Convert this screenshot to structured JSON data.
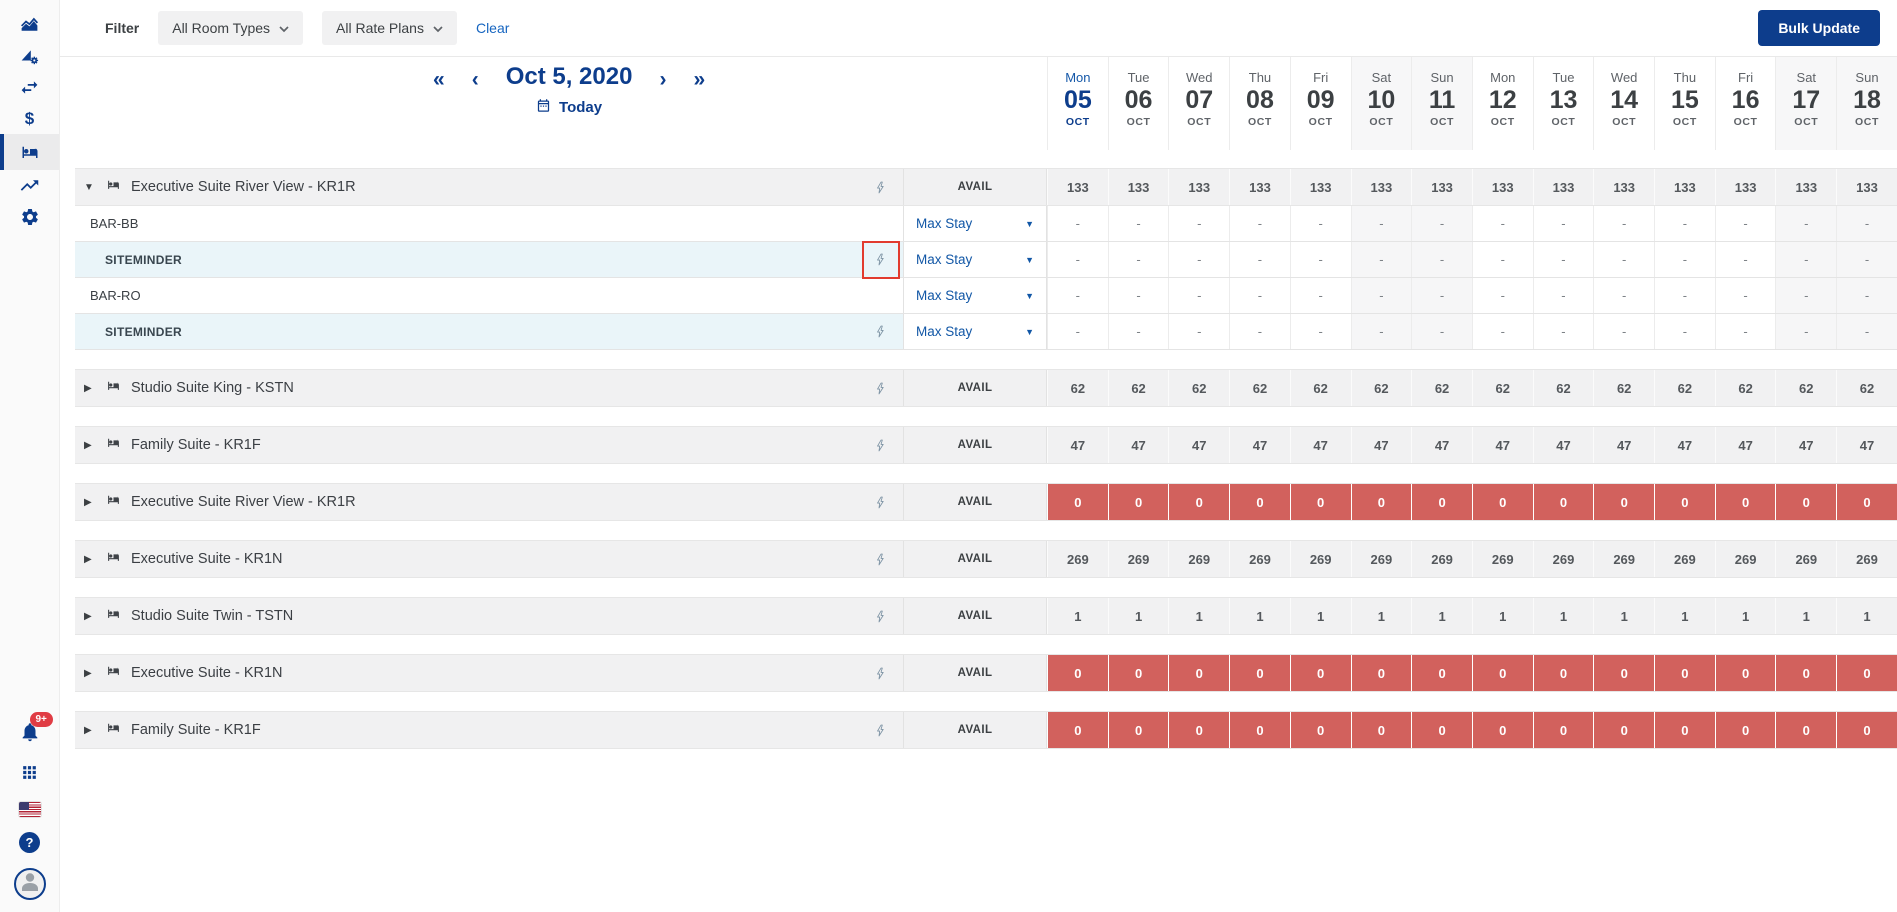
{
  "colors": {
    "navy": "#0d3d8c",
    "link_blue": "#1665c0",
    "dropdown_blue": "#1257a6",
    "zero_cell_red": "#d2615d",
    "highlight_red": "#e23b2e",
    "group_row_gray": "#f1f1f2",
    "channel_row_blue": "#eaf5f9",
    "badge_red": "#e03c44"
  },
  "sidebar": {
    "top_icons": [
      {
        "name": "dashboard-chart-icon",
        "selected": false
      },
      {
        "name": "rates-settings-icon",
        "selected": false
      },
      {
        "name": "swap-horizontal-icon",
        "selected": false
      },
      {
        "name": "currency-icon",
        "selected": false,
        "glyph": "$"
      },
      {
        "name": "rooms-bed-icon",
        "selected": true
      },
      {
        "name": "trending-up-icon",
        "selected": false
      },
      {
        "name": "settings-gear-icon",
        "selected": false
      }
    ],
    "notification_badge": "9+"
  },
  "filter_bar": {
    "label": "Filter",
    "room_types": "All Room Types",
    "rate_plans": "All Rate Plans",
    "clear": "Clear",
    "bulk_update": "Bulk Update"
  },
  "date_nav": {
    "prev_fast": "«",
    "prev": "‹",
    "title": "Oct 5, 2020",
    "next": "›",
    "next_fast": "»",
    "today": "Today"
  },
  "calendar": {
    "days": [
      {
        "dow": "Mon",
        "day": "05",
        "month": "OCT",
        "today": true,
        "weekend": false
      },
      {
        "dow": "Tue",
        "day": "06",
        "month": "OCT",
        "today": false,
        "weekend": false
      },
      {
        "dow": "Wed",
        "day": "07",
        "month": "OCT",
        "today": false,
        "weekend": false
      },
      {
        "dow": "Thu",
        "day": "08",
        "month": "OCT",
        "today": false,
        "weekend": false
      },
      {
        "dow": "Fri",
        "day": "09",
        "month": "OCT",
        "today": false,
        "weekend": false
      },
      {
        "dow": "Sat",
        "day": "10",
        "month": "OCT",
        "today": false,
        "weekend": true
      },
      {
        "dow": "Sun",
        "day": "11",
        "month": "OCT",
        "today": false,
        "weekend": true
      },
      {
        "dow": "Mon",
        "day": "12",
        "month": "OCT",
        "today": false,
        "weekend": false
      },
      {
        "dow": "Tue",
        "day": "13",
        "month": "OCT",
        "today": false,
        "weekend": false
      },
      {
        "dow": "Wed",
        "day": "14",
        "month": "OCT",
        "today": false,
        "weekend": false
      },
      {
        "dow": "Thu",
        "day": "15",
        "month": "OCT",
        "today": false,
        "weekend": false
      },
      {
        "dow": "Fri",
        "day": "16",
        "month": "OCT",
        "today": false,
        "weekend": false
      },
      {
        "dow": "Sat",
        "day": "17",
        "month": "OCT",
        "today": false,
        "weekend": true
      },
      {
        "dow": "Sun",
        "day": "18",
        "month": "OCT",
        "today": false,
        "weekend": true
      }
    ]
  },
  "table": {
    "avail_label": "AVAIL",
    "max_stay_label": "Max Stay",
    "dash": "-",
    "groups": [
      {
        "name": "Executive Suite River View - KR1R",
        "expanded": true,
        "state": "normal",
        "value": "133",
        "children": [
          {
            "type": "rate",
            "name": "BAR-BB",
            "highlighted": false
          },
          {
            "type": "channel",
            "name": "SITEMINDER",
            "highlighted": true
          },
          {
            "type": "rate",
            "name": "BAR-RO",
            "highlighted": false
          },
          {
            "type": "channel",
            "name": "SITEMINDER",
            "highlighted": false
          }
        ]
      },
      {
        "name": "Studio Suite King - KSTN",
        "expanded": false,
        "state": "normal",
        "value": "62",
        "children": []
      },
      {
        "name": "Family Suite - KR1F",
        "expanded": false,
        "state": "normal",
        "value": "47",
        "children": []
      },
      {
        "name": "Executive Suite River View - KR1R",
        "expanded": false,
        "state": "zero",
        "value": "0",
        "children": []
      },
      {
        "name": "Executive Suite - KR1N",
        "expanded": false,
        "state": "normal",
        "value": "269",
        "children": []
      },
      {
        "name": "Studio Suite Twin - TSTN",
        "expanded": false,
        "state": "normal",
        "value": "1",
        "children": []
      },
      {
        "name": "Executive Suite - KR1N",
        "expanded": false,
        "state": "zero",
        "value": "0",
        "children": []
      },
      {
        "name": "Family Suite - KR1F",
        "expanded": false,
        "state": "zero",
        "value": "0",
        "children": []
      }
    ]
  }
}
